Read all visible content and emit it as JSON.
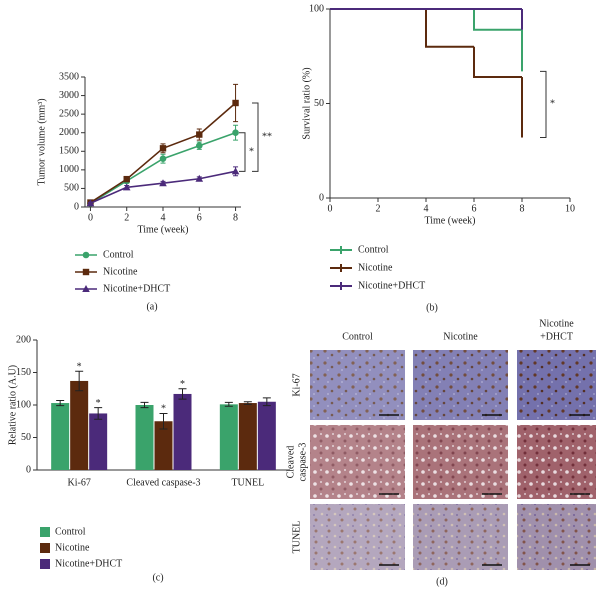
{
  "chart_data": [
    {
      "type": "line",
      "y_label": "Tumor volume (mm³)",
      "x_label": "Time (week)",
      "caption": "(a)",
      "x": [
        0,
        2,
        4,
        6,
        8
      ],
      "xlim": [
        -0.3,
        8.3
      ],
      "xticks": [
        0,
        2,
        4,
        6,
        8
      ],
      "ylim": [
        0,
        3500
      ],
      "yticks": [
        0,
        500,
        1000,
        1500,
        2000,
        2500,
        3000,
        3500
      ],
      "legend": "bottom",
      "series": [
        {
          "name": "Control",
          "color": "#3aa36b",
          "marker": "circle",
          "values": [
            100,
            700,
            1300,
            1650,
            2000
          ],
          "errors": [
            30,
            60,
            120,
            100,
            200
          ]
        },
        {
          "name": "Nicotine",
          "color": "#5c2a0e",
          "marker": "square",
          "values": [
            120,
            750,
            1580,
            1950,
            2800
          ],
          "errors": [
            30,
            60,
            120,
            150,
            500
          ]
        },
        {
          "name": "Nicotine+DHCT",
          "color": "#4b2a7a",
          "marker": "triangle",
          "values": [
            100,
            530,
            640,
            760,
            960
          ],
          "errors": [
            20,
            50,
            50,
            50,
            120
          ]
        }
      ],
      "annotations": [
        {
          "text": "**"
        },
        {
          "text": "*"
        }
      ]
    },
    {
      "type": "step",
      "y_label": "Survival ratio (%)",
      "x_label": "Time (week)",
      "caption": "(b)",
      "xlim": [
        0,
        10
      ],
      "xticks": [
        0,
        2,
        4,
        6,
        8,
        10
      ],
      "ylim": [
        0,
        100
      ],
      "yticks": [
        0,
        50,
        100
      ],
      "legend": "bottom",
      "series": [
        {
          "name": "Control",
          "color": "#3aa36b",
          "x": [
            0,
            6,
            8
          ],
          "values": [
            100,
            89,
            67
          ]
        },
        {
          "name": "Nicotine",
          "color": "#5c2a0e",
          "x": [
            0,
            4,
            6,
            8
          ],
          "values": [
            100,
            80,
            64,
            32
          ]
        },
        {
          "name": "Nicotine+DHCT",
          "color": "#4b2a7a",
          "x": [
            0,
            8
          ],
          "values": [
            100,
            89
          ]
        }
      ],
      "annotations": [
        {
          "text": "*"
        }
      ]
    },
    {
      "type": "bar",
      "y_label": "Relative ratio (A.U)",
      "caption": "(c)",
      "categories": [
        "Ki-67",
        "Cleaved caspase-3",
        "TUNEL"
      ],
      "ylim": [
        0,
        200
      ],
      "yticks": [
        0,
        50,
        100,
        150,
        200
      ],
      "legend": "bottom",
      "series": [
        {
          "name": "Control",
          "color": "#3aa36b",
          "values": [
            103,
            100,
            101
          ],
          "errors": [
            4,
            4,
            3
          ],
          "significance": [
            null,
            null,
            null
          ]
        },
        {
          "name": "Nicotine",
          "color": "#5c2a0e",
          "values": [
            137,
            75,
            103
          ],
          "errors": [
            15,
            12,
            2
          ],
          "significance": [
            "*",
            "*",
            null
          ]
        },
        {
          "name": "Nicotine+DHCT",
          "color": "#4b2a7a",
          "values": [
            87,
            117,
            105
          ],
          "errors": [
            9,
            8,
            6
          ],
          "significance": [
            "*",
            "*",
            null
          ]
        }
      ]
    }
  ],
  "micrograph_panel": {
    "caption": "(d)",
    "columns": [
      [
        "Control"
      ],
      [
        "Nicotine"
      ],
      [
        "Nicotine",
        "+DHCT"
      ]
    ],
    "rows": [
      [
        "Ki-67"
      ],
      [
        "Cleaved",
        "caspase-3"
      ],
      [
        "TUNEL"
      ]
    ]
  }
}
